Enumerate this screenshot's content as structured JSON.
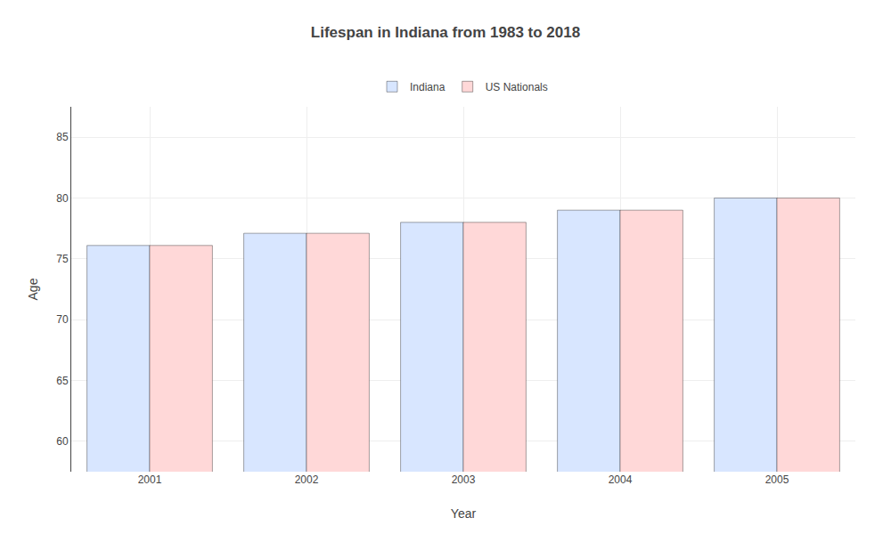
{
  "chart_data": {
    "type": "bar",
    "title": "Lifespan in Indiana from 1983 to 2018",
    "x_label": "Year",
    "y_label": "Age",
    "categories": [
      "2001",
      "2002",
      "2003",
      "2004",
      "2005"
    ],
    "series": [
      {
        "name": "Indiana",
        "color": "#d8e6ff",
        "values": [
          76.1,
          77.1,
          78.0,
          79.0,
          80.0
        ]
      },
      {
        "name": "US Nationals",
        "color": "#ffd8d8",
        "values": [
          76.1,
          77.1,
          78.0,
          79.0,
          80.0
        ]
      }
    ],
    "ylim": [
      57.5,
      87.5
    ],
    "yticks": [
      60,
      65,
      70,
      75,
      80,
      85
    ],
    "grid": true,
    "legend": "top"
  }
}
